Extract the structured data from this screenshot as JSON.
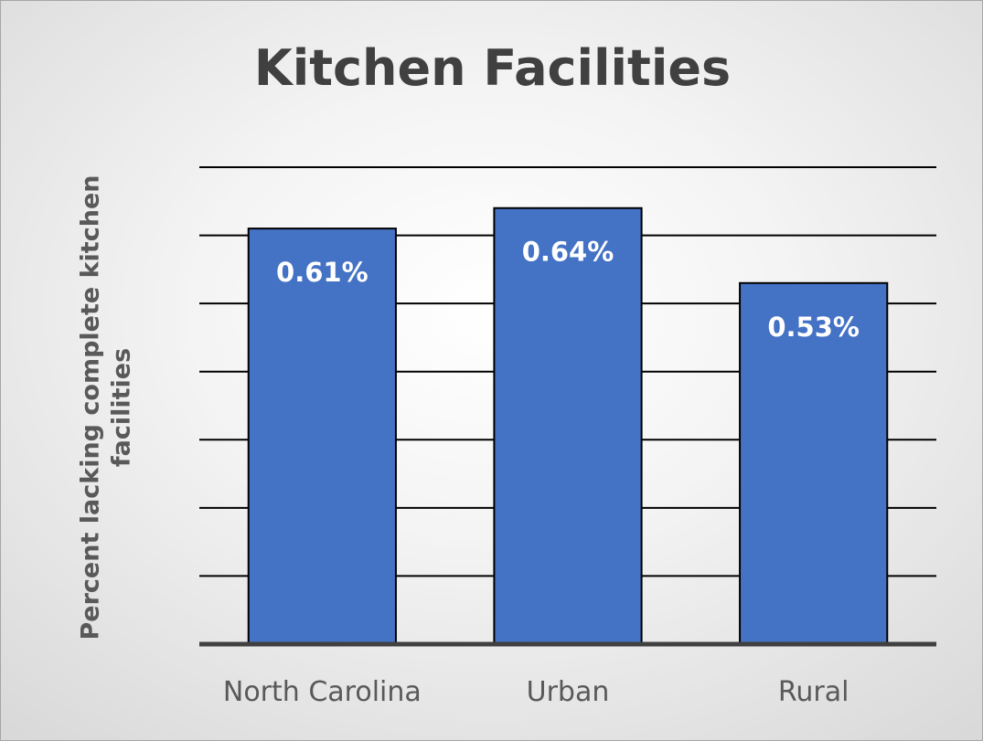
{
  "chart_data": {
    "type": "bar",
    "title": "Kitchen Facilities",
    "ylabel": "Percent lacking complete kitchen facilities",
    "xlabel": "",
    "categories": [
      "North Carolina",
      "Urban",
      "Rural"
    ],
    "values": [
      0.61,
      0.64,
      0.53
    ],
    "data_labels": [
      "0.61%",
      "0.64%",
      "0.53%"
    ],
    "ylim": [
      0,
      0.7
    ],
    "gridlines": [
      0.1,
      0.2,
      0.3,
      0.4,
      0.5,
      0.6,
      0.7
    ],
    "grid": true,
    "y_tick_labels_shown": false,
    "legend": "none",
    "colors": {
      "bar": "#4472c4",
      "bar_border": "#000000",
      "grid": "#000000",
      "axis": "#404040",
      "title": "#404040",
      "label": "#595959",
      "data_label": "#ffffff"
    }
  }
}
